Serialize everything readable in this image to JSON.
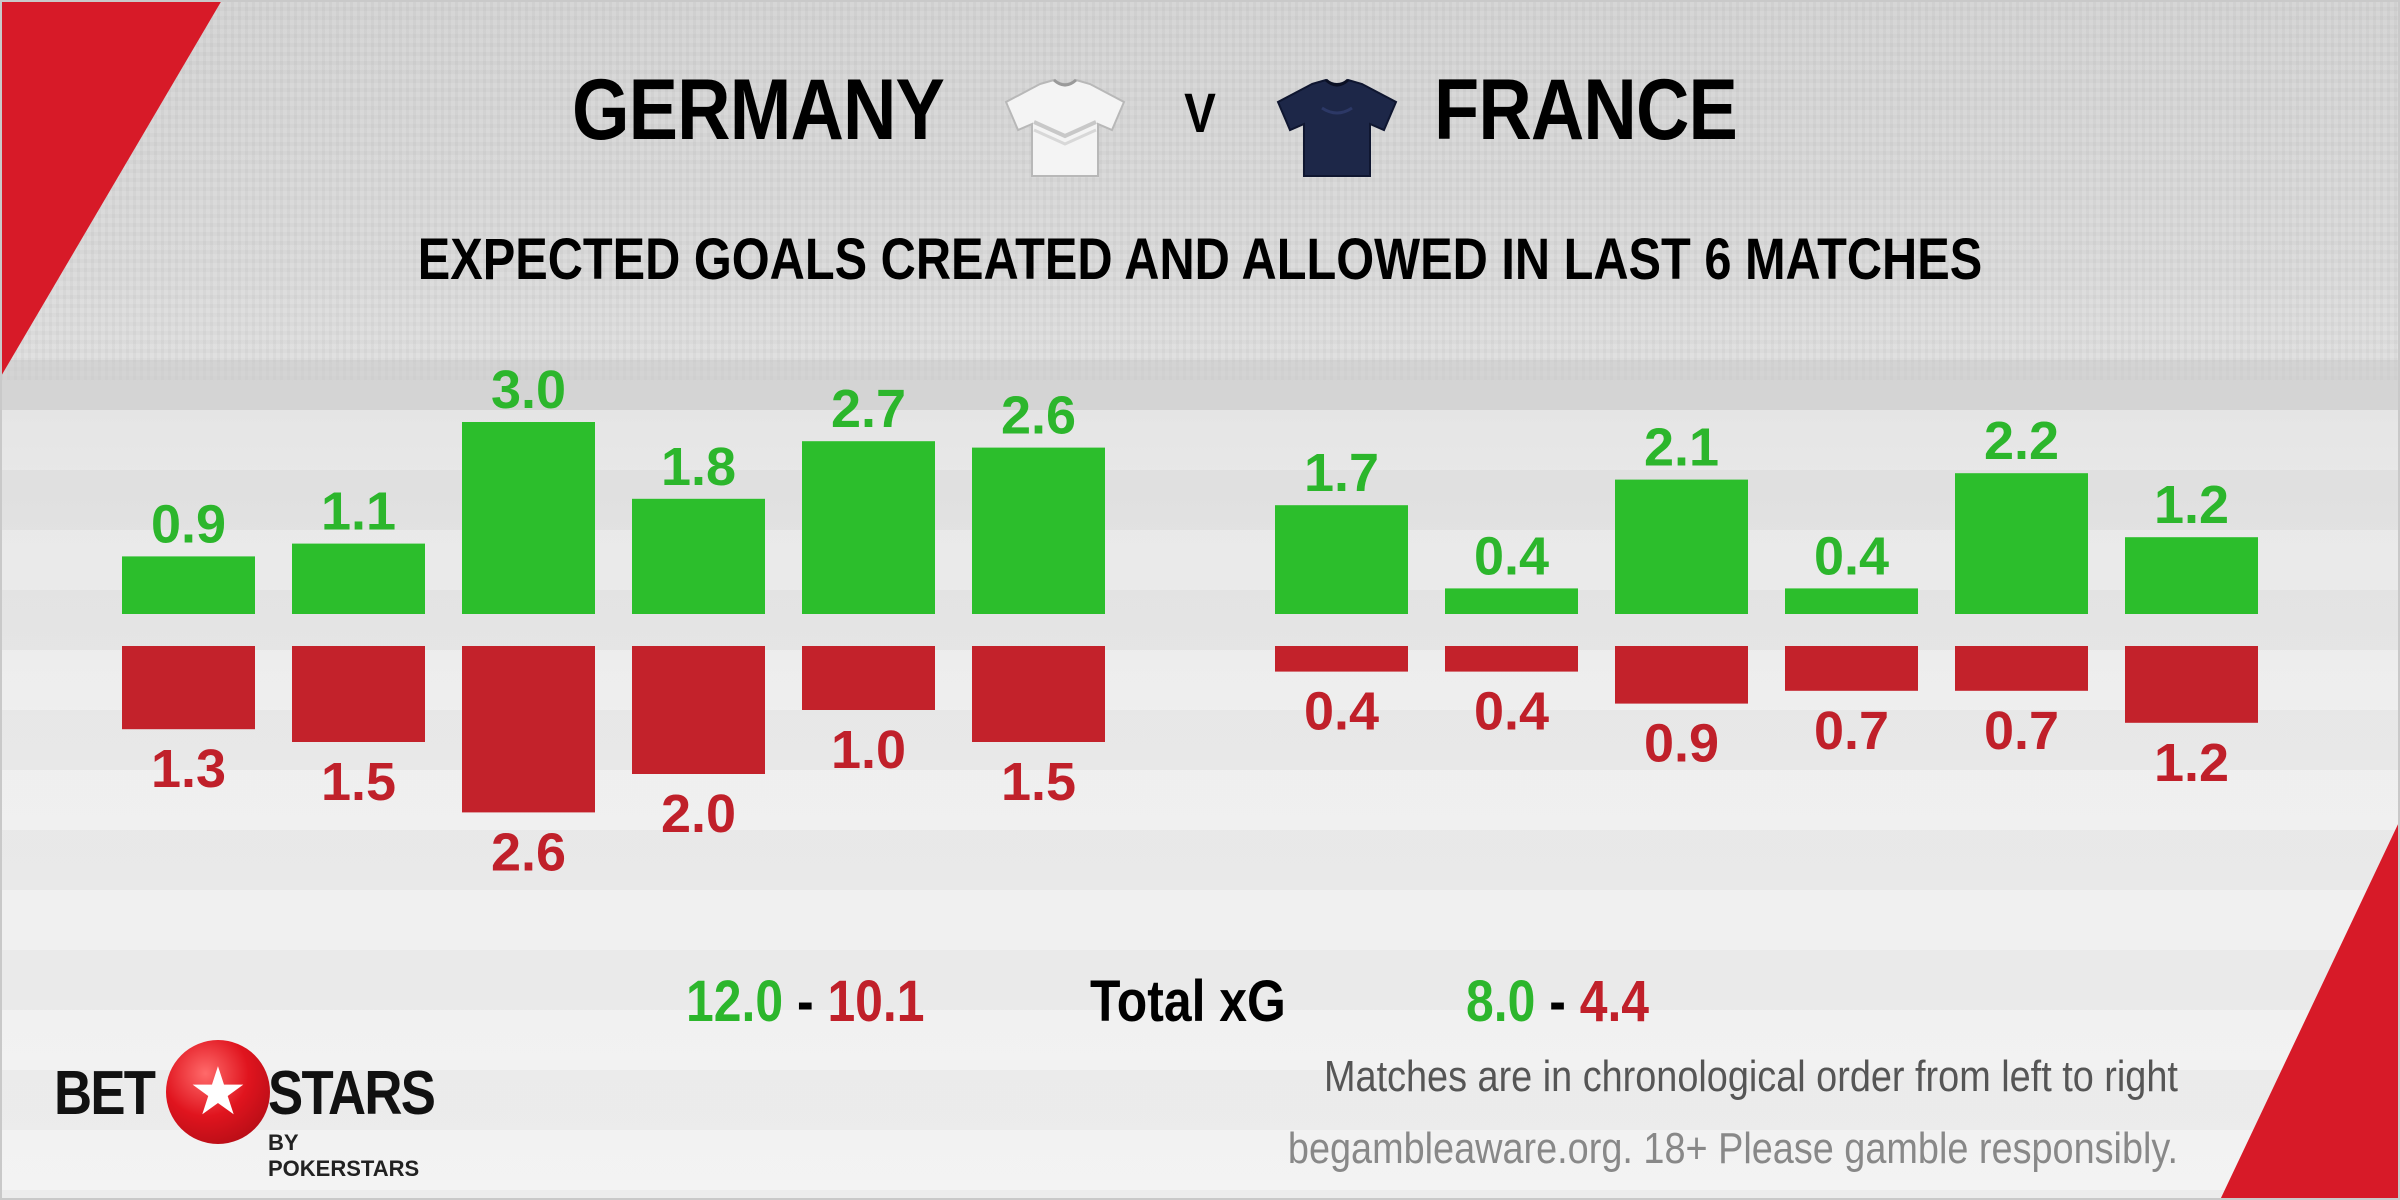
{
  "header": {
    "home_team": "GERMANY",
    "versus": "V",
    "away_team": "FRANCE",
    "home_shirt_icon": "white-football-shirt-icon",
    "away_shirt_icon": "navy-football-shirt-icon"
  },
  "chart_data": {
    "type": "bar",
    "title": "EXPECTED GOALS CREATED AND ALLOWED IN LAST 6 MATCHES",
    "xlabel": "",
    "ylabel": "",
    "colors": {
      "created": "#2cbe2c",
      "allowed": "#c3222b",
      "created_label": "#2cb62c",
      "allowed_label": "#c0202a"
    },
    "teams": [
      {
        "name": "GERMANY",
        "created": [
          0.9,
          1.1,
          3.0,
          1.8,
          2.7,
          2.6
        ],
        "allowed": [
          1.3,
          1.5,
          2.6,
          2.0,
          1.0,
          1.5
        ],
        "created_labels": [
          "0.9",
          "1.1",
          "3.0",
          "1.8",
          "2.7",
          "2.6"
        ],
        "allowed_labels": [
          "1.3",
          "1.5",
          "2.6",
          "2.0",
          "1.0",
          "1.5"
        ]
      },
      {
        "name": "FRANCE",
        "created": [
          1.7,
          0.4,
          2.1,
          0.4,
          2.2,
          1.2
        ],
        "allowed": [
          0.4,
          0.4,
          0.9,
          0.7,
          0.7,
          1.2
        ],
        "created_labels": [
          "1.7",
          "0.4",
          "2.1",
          "0.4",
          "2.2",
          "1.2"
        ],
        "allowed_labels": [
          "0.4",
          "0.4",
          "0.9",
          "0.7",
          "0.7",
          "1.2"
        ]
      }
    ]
  },
  "totals": {
    "label": "Total xG",
    "home_created": "12.0",
    "home_allowed": "10.1",
    "away_created": "8.0",
    "away_allowed": "4.4",
    "separator": "-"
  },
  "footer": {
    "note": "Matches are in chronological order from left to right",
    "gamble_notice": "begambleaware.org. 18+ Please gamble responsibly."
  },
  "logo": {
    "word_left": "BET",
    "word_right": "STARS",
    "subline": "BY POKERSTARS",
    "icon": "star-ball-icon",
    "accent": "#e0141e"
  }
}
